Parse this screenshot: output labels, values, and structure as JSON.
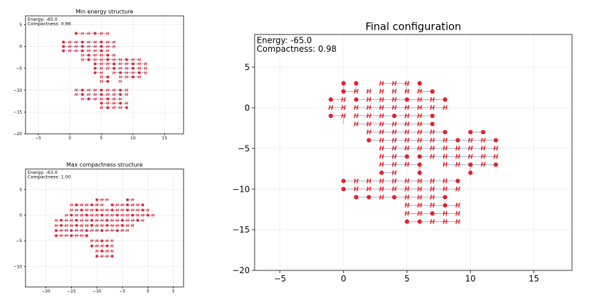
{
  "colors": {
    "residue": "#e8202a",
    "bond": "#8fb1cf",
    "grid": "#e6e6e6"
  },
  "chart_data": [
    {
      "type": "scatter",
      "id": "min",
      "title": "Min energy structure",
      "info": [
        "Energy: -65.0",
        "Compactness: 0.96"
      ],
      "xlim": [
        -7,
        18
      ],
      "ylim": [
        -20,
        7
      ],
      "xticks": [
        -5,
        0,
        5,
        10,
        15
      ],
      "yticks": [
        -20,
        -15,
        -10,
        -5,
        0,
        5
      ],
      "grid": true,
      "grid_pts": [
        "1,3|2,3|3,3|4,3|5,3|6,3",
        "-1,1|0,1|1,1|2,1|3,1|4,1|5,1|6,1|7,1",
        "-1,0|0,0|1,0|2,0|3,0|4,0|5,0|6,0|7,0",
        "-1,-1|0,-1|1,-1|2,-1|3,-1|4,-1|5,-1|6,-1",
        "2,-2|3,-2|4,-2|5,-2|6,-2|7,-2",
        "2,-3|3,-3|4,-3|5,-3|6,-3|7,-3|8,-3|9,-3|10,-3|11,-3",
        "4,-4|5,-4|6,-4|7,-4|8,-4|9,-4|10,-4|11,-4|12,-4",
        "4,-5|5,-5|6,-5|7,-5|8,-5|9,-5|10,-5|11,-5|12,-5",
        "4,-6|5,-6|7,-6|8,-6|9,-6|10,-6|11,-6|12,-6",
        "5,-7|6,-7|8,-7|9,-7|10,-7|11,-7",
        "5,-8|6,-8|8,-8",
        "1,-10|2,-10|3,-10|4,-10|5,-10|6,-10|7,-10|8,-10|9,-10",
        "1,-11|2,-11|3,-11|4,-11|5,-11|6,-11|7,-11|8,-11|9,-11",
        "2,-12|3,-12|4,-12|5,-12|6,-12|7,-12|8,-12",
        "5,-13|6,-13|7,-13|8,-13|9,-13",
        "5,-14|6,-14|7,-14|8,-14|9,-14"
      ]
    },
    {
      "type": "scatter",
      "id": "max",
      "title": "Max compactness structure",
      "info": [
        "Energy: -63.0",
        "Compactness: 1.00"
      ],
      "xlim": [
        -24,
        7
      ],
      "ylim": [
        -14,
        9
      ],
      "xticks": [
        -20,
        -15,
        -10,
        -5,
        0,
        5
      ],
      "yticks": [
        -10,
        -5,
        0,
        5
      ],
      "grid": true,
      "grid_pts": [
        "-10,3|-9,3|-8,3|-4,3|-3,3",
        "-15,2|-14,2|-13,2|-12,2|-11,2|-10,2|-9,2|-7,2|-6,2|-5,2|-4,2|-3,2|-2,2|-1,2",
        "-15,1|-14,1|-13,1|-12,1|-11,1|-10,1|-9,1|-8,1|-7,1|-6,1|-5,1|-4,1|-3,1|-2,1|-1,1|0,1",
        "-16,0|-15,0|-14,0|-13,0|-12,0|-11,0|-10,0|-9,0|-8,0|-7,0|-6,0|-5,0|-4,0|-3,0|-2,0|-1,0|0,0|1,0",
        "-18,-1|-17,-1|-16,-1|-15,-1|-14,-1|-13,-1|-12,-1|-11,-1|-10,-1|-9,-1|-8,-1|-7,-1|-6,-1|-5,-1|-4,-1|-3,-1|-2,-1|-1,-1",
        "-18,-2|-17,-2|-16,-2|-15,-2|-14,-2|-13,-2|-12,-2|-11,-2|-10,-2|-9,-2|-8,-2|-7,-2|-6,-2|-5,-2|-4,-2|-3,-2",
        "-18,-3|-17,-3|-16,-3|-15,-3|-14,-3|-13,-3|-12,-3|-11,-3|-10,-3|-9,-3|-8,-3|-7,-3|-6,-3|-5,-3|-4,-3",
        "-18,-4|-17,-4|-16,-4|-15,-4|-14,-4|-13,-4|-12,-4",
        "-11,-5|-10,-5|-9,-5|-8,-5|-7,-5",
        "-11,-6|-10,-6|-9,-6|-8,-6|-7,-6",
        "-10,-7|-9,-7|-8,-7|-7,-7",
        "-10,-8|-9,-8|-8,-8|-7,-8"
      ]
    },
    {
      "type": "scatter",
      "id": "final",
      "title": "Final configuration",
      "info": [
        "Energy: -65.0",
        "Compactness: 0.98"
      ],
      "xlim": [
        -7,
        18
      ],
      "ylim": [
        -20,
        9
      ],
      "xticks": [
        -5,
        0,
        5,
        10,
        15
      ],
      "yticks": [
        -20,
        -15,
        -10,
        -5,
        0,
        5
      ],
      "grid": true,
      "bonds": "0,3-0,2;0,2-1,2;1,3-1,2;3,3-4,3;4,3-5,3;5,3-5,2;6,3-6,2;6,2-7,2;-1,1-0,1;1,1-2,1;2,1-3,1;3,1-4,1;4,1-5,1;5,1-6,1;6,1-7,1;7,1-8,1;-1,0-0,0;1,0-2,0;2,0-3,0;3,0-4,0;4,0-5,0;5,0-6,0;6,0-7,0;7,0-8,0;-1,-1-0,-1;0,-1-0,-2;1,-1-2,-1;2,-1-3,-1;3,-1-4,-1;4,-1-5,-1;5,-1-6,-1;6,-1-7,-1;1,-2-2,-2;2,-2-3,-2;3,-2-4,-2;4,-2-5,-2;5,-2-6,-2;6,-2-7,-2;2,-3-3,-3;3,-3-4,-3;4,-3-5,-3;5,-3-6,-3;6,-3-7,-3;7,-3-8,-3;10,-3-11,-3;2,-4-3,-4;3,-4-4,-4;4,-4-5,-4;5,-4-6,-4;6,-4-7,-4;7,-4-8,-4;8,-4-9,-4;9,-4-10,-4;10,-4-11,-4;11,-4-12,-4;3,-5-4,-5;4,-5-5,-5;5,-5-6,-5;6,-5-7,-5;7,-5-8,-5;8,-5-9,-5;9,-5-10,-5;10,-5-11,-5;11,-5-12,-5;3,-6-4,-6;4,-6-5,-6;6,-6-7,-6;7,-6-8,-6;8,-6-9,-6;9,-6-10,-6;10,-6-11,-6;11,-6-12,-6;3,-7-4,-7;4,-7-5,-7;5,-7-6,-7;8,-7-9,-7;9,-7-10,-7;10,-7-11,-7;11,-7-12,-7;3,-8-4,-8;6,-8-6,-7;10,-8-10,-7;0,-9-1,-9;1,-9-2,-9;2,-9-3,-9;3,-9-4,-9;4,-9-5,-9;5,-9-6,-9;6,-9-7,-9;7,-9-8,-9;8,-9-9,-9;0,-10-1,-10;1,-10-2,-10;2,-10-3,-10;3,-10-4,-10;4,-10-5,-10;5,-10-6,-10;6,-10-7,-10;7,-10-8,-10;8,-10-9,-10;1,-11-2,-11;2,-11-3,-11;3,-11-4,-11;4,-11-5,-11;5,-11-6,-11;6,-11-7,-11;7,-11-8,-11;5,-12-6,-12;6,-12-7,-12;7,-12-8,-12;8,-12-9,-12;5,-13-6,-13;6,-13-7,-13;7,-13-8,-13;8,-13-9,-13;5,-14-6,-14;6,-14-7,-14;7,-14-8,-14;8,-14-9,-14",
      "residues": [
        "0,3,P|1,3,P|3,3,H|4,3,H|5,3,H|6,3,P",
        "0,2,P|1,2,H|2,2,H|3,2,H|4,2,H|5,2,H|6,2,H|7,2,P",
        "-1,1,P|0,1,H|1,1,P|2,1,H|3,1,H|4,1,H|5,1,P|6,1,H|7,1,H|8,1,P",
        "-1,0,H|0,0,H|1,0,H|2,0,H|3,0,H|4,0,H|5,0,H|6,0,H|7,0,H|8,0,H",
        "-1,-1,P|0,-1,H|1,-1,H|2,-1,H|3,-1,H|4,-1,P|5,-1,H|6,-1,H|7,-1,P",
        "1,-2,H|2,-2,H|3,-2,H|4,-2,H|5,-2,H|6,-2,H|7,-2,P",
        "2,-3,H|3,-3,H|4,-3,H|5,-3,H|6,-3,H|7,-3,H|8,-3,P|10,-3,P|11,-3,P",
        "2,-4,P|3,-4,H|4,-4,H|5,-4,H|6,-4,H|7,-4,H|8,-4,H|9,-4,P|10,-4,H|11,-4,H|12,-4,P",
        "3,-5,H|4,-5,H|5,-5,H|6,-5,H|7,-5,H|8,-5,H|9,-5,H|10,-5,H|11,-5,H|12,-5,H",
        "3,-6,H|4,-6,H|5,-6,P|6,-6,P|7,-6,H|8,-6,H|9,-6,H|10,-6,H|11,-6,H|12,-6,H",
        "3,-7,H|4,-7,H|5,-7,H|6,-7,P|8,-7,H|9,-7,H|10,-7,P|11,-7,H|12,-7,P",
        "3,-8,P|4,-8,H|6,-8,P|10,-8,P",
        "0,-9,P|1,-9,H|2,-9,H|3,-9,H|4,-9,H|5,-9,H|6,-9,H|7,-9,H|8,-9,H|9,-9,P",
        "0,-10,P|1,-10,H|2,-10,H|3,-10,H|4,-10,H|5,-10,H|6,-10,H|7,-10,H|8,-10,H|9,-10,H",
        "1,-11,P|2,-11,P|3,-11,H|4,-11,P|5,-11,H|6,-11,H|7,-11,H|8,-11,P",
        "5,-12,H|6,-12,H|7,-12,H|8,-12,P|9,-12,H",
        "5,-13,H|6,-13,H|7,-13,P|8,-13,H|9,-13,H",
        "5,-14,P|6,-14,P|7,-14,H|8,-14,H|9,-14,H"
      ]
    }
  ]
}
